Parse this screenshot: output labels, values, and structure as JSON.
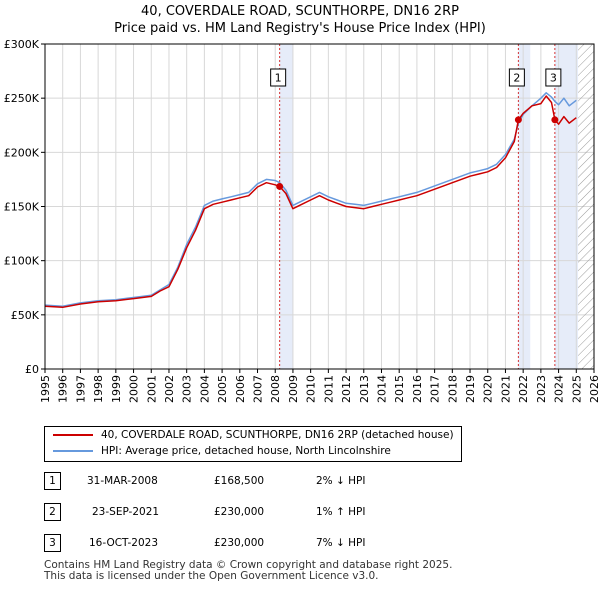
{
  "header": {
    "line1": "40, COVERDALE ROAD, SCUNTHORPE, DN16 2RP",
    "line2": "Price paid vs. HM Land Registry's House Price Index (HPI)"
  },
  "chart_data": {
    "type": "line",
    "title": "40, COVERDALE ROAD, SCUNTHORPE, DN16 2RP",
    "subtitle": "Price paid vs. HM Land Registry's House Price Index (HPI)",
    "xlabel": "",
    "ylabel": "",
    "xlim": [
      1995,
      2026
    ],
    "ylim": [
      0,
      300000
    ],
    "y_ticks": [
      0,
      50000,
      100000,
      150000,
      200000,
      250000,
      300000
    ],
    "y_tick_labels": [
      "£0",
      "£50K",
      "£100K",
      "£150K",
      "£200K",
      "£250K",
      "£300K"
    ],
    "x_ticks": [
      1995,
      1996,
      1997,
      1998,
      1999,
      2000,
      2001,
      2002,
      2003,
      2004,
      2005,
      2006,
      2007,
      2008,
      2009,
      2010,
      2011,
      2012,
      2013,
      2014,
      2015,
      2016,
      2017,
      2018,
      2019,
      2020,
      2021,
      2022,
      2023,
      2024,
      2025,
      2026
    ],
    "grid": true,
    "shaded_periods": [
      [
        2008.25,
        2009.0
      ],
      [
        2021.73,
        2022.4
      ],
      [
        2023.79,
        2025.1
      ]
    ],
    "hatched_from": 2025.1,
    "series": [
      {
        "name": "40, COVERDALE ROAD, SCUNTHORPE, DN16 2RP (detached house)",
        "color": "#cc0000",
        "x": [
          1995.0,
          1996.0,
          1997.0,
          1998.0,
          1999.0,
          2000.0,
          2001.0,
          2001.5,
          2002.0,
          2002.5,
          2003.0,
          2003.5,
          2004.0,
          2004.5,
          2005.0,
          2005.5,
          2006.0,
          2006.5,
          2007.0,
          2007.5,
          2008.0,
          2008.25,
          2008.6,
          2009.0,
          2009.5,
          2010.0,
          2010.5,
          2011.0,
          2011.5,
          2012.0,
          2012.5,
          2013.0,
          2013.5,
          2014.0,
          2014.5,
          2015.0,
          2015.5,
          2016.0,
          2016.5,
          2017.0,
          2017.5,
          2018.0,
          2018.5,
          2019.0,
          2019.5,
          2020.0,
          2020.5,
          2021.0,
          2021.5,
          2021.73,
          2022.0,
          2022.5,
          2023.0,
          2023.3,
          2023.6,
          2023.79,
          2024.0,
          2024.3,
          2024.6,
          2025.0
        ],
        "values": [
          58000,
          57000,
          60000,
          62000,
          63000,
          65000,
          67000,
          72000,
          76000,
          92000,
          112000,
          128000,
          148000,
          152000,
          154000,
          156000,
          158000,
          160000,
          168000,
          172000,
          170000,
          168500,
          162000,
          148000,
          152000,
          156000,
          160000,
          156000,
          153000,
          150000,
          149000,
          148000,
          150000,
          152000,
          154000,
          156000,
          158000,
          160000,
          163000,
          166000,
          169000,
          172000,
          175000,
          178000,
          180000,
          182000,
          186000,
          195000,
          210000,
          230000,
          236000,
          243000,
          245000,
          252000,
          246000,
          230000,
          226000,
          233000,
          227000,
          232000
        ]
      },
      {
        "name": "HPI: Average price, detached house, North Lincolnshire",
        "color": "#6699dd",
        "x": [
          1995.0,
          1996.0,
          1997.0,
          1998.0,
          1999.0,
          2000.0,
          2001.0,
          2001.5,
          2002.0,
          2002.5,
          2003.0,
          2003.5,
          2004.0,
          2004.5,
          2005.0,
          2005.5,
          2006.0,
          2006.5,
          2007.0,
          2007.5,
          2008.0,
          2008.25,
          2008.6,
          2009.0,
          2009.5,
          2010.0,
          2010.5,
          2011.0,
          2011.5,
          2012.0,
          2012.5,
          2013.0,
          2013.5,
          2014.0,
          2014.5,
          2015.0,
          2015.5,
          2016.0,
          2016.5,
          2017.0,
          2017.5,
          2018.0,
          2018.5,
          2019.0,
          2019.5,
          2020.0,
          2020.5,
          2021.0,
          2021.5,
          2021.73,
          2022.0,
          2022.5,
          2023.0,
          2023.3,
          2023.6,
          2023.79,
          2024.0,
          2024.3,
          2024.6,
          2025.0
        ],
        "values": [
          59000,
          58000,
          61000,
          63000,
          64000,
          66000,
          68000,
          73000,
          78000,
          94000,
          115000,
          131000,
          151000,
          155000,
          157000,
          159000,
          161000,
          163000,
          171000,
          175000,
          174000,
          172000,
          165000,
          151000,
          155000,
          159000,
          163000,
          159000,
          156000,
          153000,
          152000,
          151000,
          153000,
          155000,
          157000,
          159000,
          161000,
          163000,
          166000,
          169000,
          172000,
          175000,
          178000,
          181000,
          183000,
          185000,
          189000,
          198000,
          212000,
          227000,
          235000,
          243000,
          250000,
          255000,
          251000,
          247000,
          244000,
          250000,
          243000,
          248000
        ]
      }
    ],
    "annotations": [
      {
        "label": "1",
        "x": 2008.25,
        "y": 168500
      },
      {
        "label": "2",
        "x": 2021.73,
        "y": 230000
      },
      {
        "label": "3",
        "x": 2023.79,
        "y": 230000
      }
    ]
  },
  "legend": {
    "property_label": "40, COVERDALE ROAD, SCUNTHORPE, DN16 2RP (detached house)",
    "property_color": "#cc0000",
    "hpi_label": "HPI: Average price, detached house, North Lincolnshire",
    "hpi_color": "#6699dd"
  },
  "sales": [
    {
      "num": "1",
      "date": "31-MAR-2008",
      "price": "£168,500",
      "hpi": "2% ↓ HPI"
    },
    {
      "num": "2",
      "date": "23-SEP-2021",
      "price": "£230,000",
      "hpi": "1% ↑ HPI"
    },
    {
      "num": "3",
      "date": "16-OCT-2023",
      "price": "£230,000",
      "hpi": "7% ↓ HPI"
    }
  ],
  "footer": {
    "line1": "Contains HM Land Registry data © Crown copyright and database right 2025.",
    "line2": "This data is licensed under the Open Government Licence v3.0."
  }
}
